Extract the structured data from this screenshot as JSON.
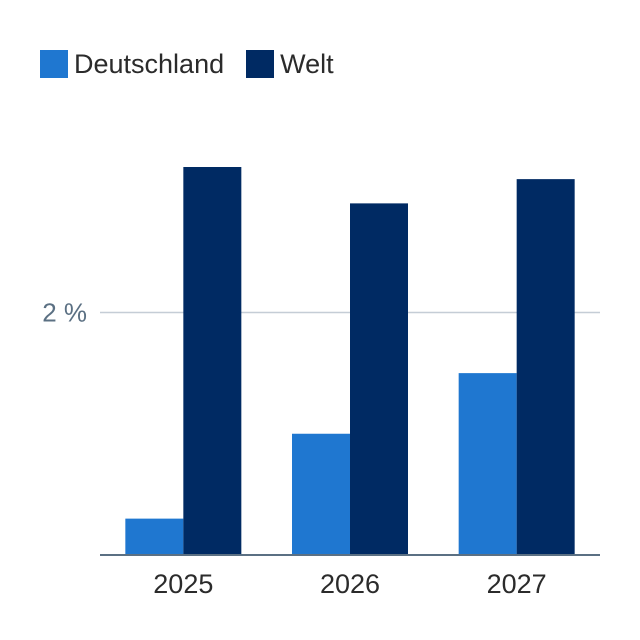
{
  "chart_data": {
    "type": "bar",
    "categories": [
      "2025",
      "2026",
      "2027"
    ],
    "series": [
      {
        "name": "Deutschland",
        "values": [
          0.3,
          1.0,
          1.5
        ],
        "color": "#1f77d0"
      },
      {
        "name": "Welt",
        "values": [
          3.2,
          2.9,
          3.1
        ],
        "color": "#002a63"
      }
    ],
    "ylim": [
      0,
      3.2
    ],
    "yticks": [
      {
        "value": 2,
        "label": "2 %"
      }
    ],
    "grid": true,
    "legend_position": "top-left",
    "title": "",
    "xlabel": "",
    "ylabel": ""
  }
}
